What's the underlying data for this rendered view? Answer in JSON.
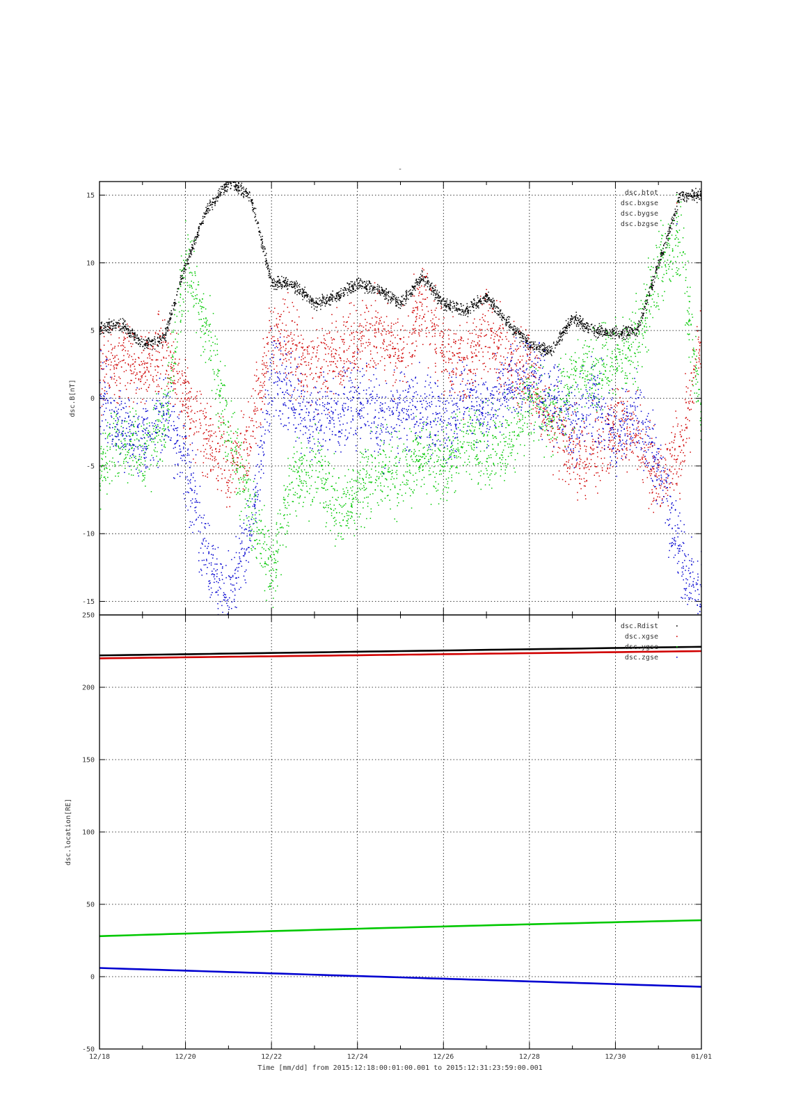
{
  "chart_data": [
    {
      "type": "scatter",
      "title": "-",
      "ylabel": "dsc.B[nT]",
      "ylim": [
        -16,
        16
      ],
      "yticks": [
        -15,
        -10,
        -5,
        0,
        5,
        10,
        15
      ],
      "xlim": [
        "12/18",
        "01/01"
      ],
      "grid": true,
      "legend_position": "top-right",
      "series": [
        {
          "name": "dsc.btot",
          "color": "#000000",
          "x": [
            "12/18",
            "12/18 12:00",
            "12/19",
            "12/19 12:00",
            "12/20",
            "12/20 12:00",
            "12/21",
            "12/21 12:00",
            "12/22",
            "12/22 12:00",
            "12/23",
            "12/23 12:00",
            "12/24",
            "12/24 12:00",
            "12/25",
            "12/25 12:00",
            "12/26",
            "12/26 12:00",
            "12/27",
            "12/27 12:00",
            "12/28",
            "12/28 12:00",
            "12/29",
            "12/29 12:00",
            "12/30",
            "12/30 12:00",
            "12/31",
            "12/31 12:00",
            "01/01"
          ],
          "values": [
            5.2,
            5.5,
            4.0,
            4.5,
            10.0,
            14.0,
            16.0,
            15.0,
            8.5,
            8.5,
            7.0,
            7.5,
            8.5,
            8.0,
            7.0,
            9.0,
            7.0,
            6.5,
            7.5,
            5.5,
            4.0,
            3.5,
            6.0,
            5.0,
            4.8,
            5.0,
            10.0,
            15.0,
            15.0
          ]
        },
        {
          "name": "dsc.bxgse",
          "color": "#d00000",
          "x": [
            "12/18",
            "12/18 12:00",
            "12/19",
            "12/19 12:00",
            "12/20",
            "12/20 12:00",
            "12/21",
            "12/21 12:00",
            "12/22",
            "12/22 12:00",
            "12/23",
            "12/23 12:00",
            "12/24",
            "12/24 12:00",
            "12/25",
            "12/25 12:00",
            "12/26",
            "12/26 12:00",
            "12/27",
            "12/27 12:00",
            "12/28",
            "12/28 12:00",
            "12/29",
            "12/29 12:00",
            "12/30",
            "12/30 12:00",
            "12/31",
            "12/31 12:00",
            "01/01"
          ],
          "values": [
            2.0,
            3.0,
            2.0,
            3.5,
            0.0,
            -3.0,
            -5.0,
            -3.0,
            5.0,
            4.0,
            2.0,
            3.0,
            4.0,
            5.0,
            3.0,
            7.0,
            3.0,
            2.0,
            5.0,
            3.0,
            2.0,
            -2.0,
            -4.0,
            -4.0,
            -2.0,
            -3.0,
            -6.0,
            -4.0,
            5.0
          ]
        },
        {
          "name": "dsc.bygse",
          "color": "#00c800",
          "x": [
            "12/18",
            "12/18 12:00",
            "12/19",
            "12/19 12:00",
            "12/20",
            "12/20 12:00",
            "12/21",
            "12/21 12:00",
            "12/22",
            "12/22 12:00",
            "12/23",
            "12/23 12:00",
            "12/24",
            "12/24 12:00",
            "12/25",
            "12/25 12:00",
            "12/26",
            "12/26 12:00",
            "12/27",
            "12/27 12:00",
            "12/28",
            "12/28 12:00",
            "12/29",
            "12/29 12:00",
            "12/30",
            "12/30 12:00",
            "12/31",
            "12/31 12:00",
            "01/01"
          ],
          "values": [
            -5.0,
            -3.0,
            -4.0,
            -2.0,
            10.0,
            5.0,
            -3.0,
            -8.0,
            -13.0,
            -6.0,
            -5.0,
            -8.0,
            -7.0,
            -5.0,
            -6.0,
            -4.0,
            -5.0,
            -3.0,
            -4.0,
            -3.0,
            0.0,
            -1.0,
            1.0,
            2.0,
            3.0,
            4.0,
            10.0,
            12.0,
            -2.0
          ]
        },
        {
          "name": "dsc.bzgse",
          "color": "#0000d0",
          "x": [
            "12/18",
            "12/18 12:00",
            "12/19",
            "12/19 12:00",
            "12/20",
            "12/20 12:00",
            "12/21",
            "12/21 12:00",
            "12/22",
            "12/22 12:00",
            "12/23",
            "12/23 12:00",
            "12/24",
            "12/24 12:00",
            "12/25",
            "12/25 12:00",
            "12/26",
            "12/26 12:00",
            "12/27",
            "12/27 12:00",
            "12/28",
            "12/28 12:00",
            "12/29",
            "12/29 12:00",
            "12/30",
            "12/30 12:00",
            "12/31",
            "12/31 12:00",
            "01/01"
          ],
          "values": [
            0.0,
            -2.0,
            -3.0,
            -1.0,
            -5.0,
            -12.0,
            -15.0,
            -10.0,
            2.0,
            0.0,
            -2.0,
            -1.0,
            0.0,
            -2.0,
            -1.0,
            -1.0,
            -2.0,
            0.0,
            -1.0,
            1.0,
            2.0,
            0.0,
            -2.0,
            0.0,
            -3.0,
            -1.0,
            -5.0,
            -12.0,
            -15.0
          ]
        }
      ]
    },
    {
      "type": "scatter",
      "ylabel": "dsc.location[RE]",
      "ylim": [
        -50,
        250
      ],
      "yticks": [
        -50,
        0,
        50,
        100,
        150,
        200,
        250
      ],
      "xlim": [
        "12/18",
        "01/01"
      ],
      "xticks": [
        "12/18",
        "12/20",
        "12/22",
        "12/24",
        "12/26",
        "12/28",
        "12/30",
        "01/01"
      ],
      "xlabel": "Time [mm/dd]  from 2015:12:18:00:01:00.001  to  2015:12:31:23:59:00.001",
      "grid": true,
      "legend_position": "top-right",
      "series": [
        {
          "name": "dsc.Rdist",
          "color": "#000000",
          "x": [
            "12/18",
            "01/01"
          ],
          "values": [
            222,
            228
          ]
        },
        {
          "name": "dsc.xgse",
          "color": "#d00000",
          "x": [
            "12/18",
            "01/01"
          ],
          "values": [
            220,
            225
          ]
        },
        {
          "name": "dsc.ygse",
          "color": "#00c800",
          "x": [
            "12/18",
            "01/01"
          ],
          "values": [
            28,
            39
          ]
        },
        {
          "name": "dsc.zgse",
          "color": "#0000d0",
          "x": [
            "12/18",
            "01/01"
          ],
          "values": [
            6,
            -7
          ]
        }
      ]
    }
  ]
}
